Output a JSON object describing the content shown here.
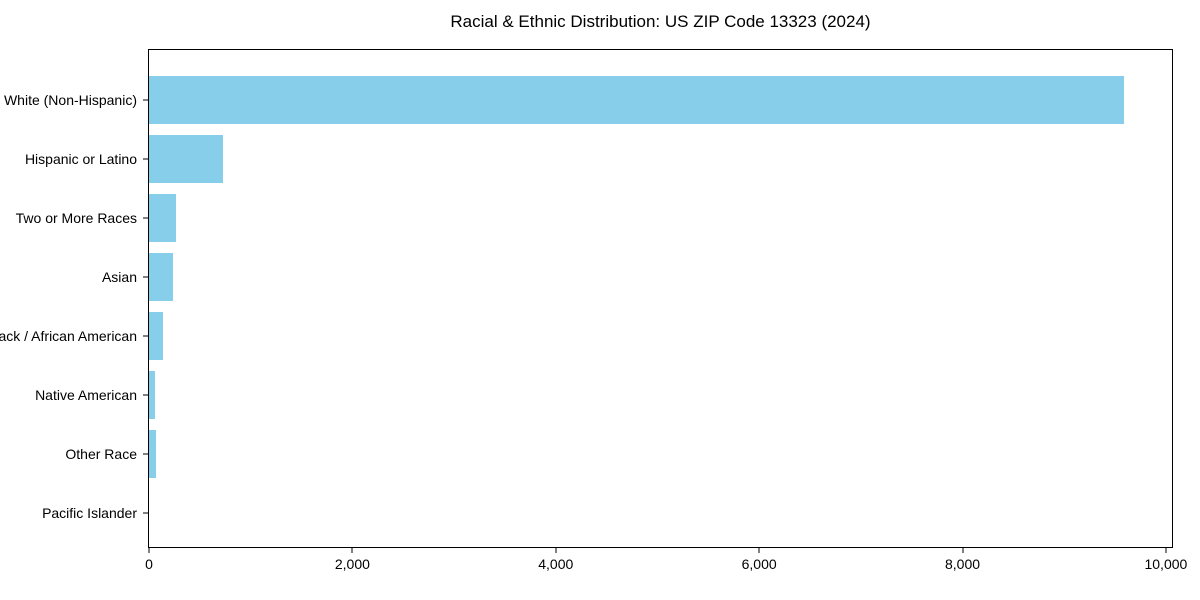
{
  "chart_data": {
    "type": "bar",
    "orientation": "horizontal",
    "title": "Racial & Ethnic Distribution: US ZIP Code 13323 (2024)",
    "categories": [
      "White (Non-Hispanic)",
      "Hispanic or Latino",
      "Two or More Races",
      "Asian",
      "Black / African American",
      "Native American",
      "Other Race",
      "Pacific Islander"
    ],
    "values": [
      9590,
      730,
      265,
      240,
      140,
      60,
      70,
      0
    ],
    "xlabel": "",
    "ylabel": "",
    "xlim": [
      0,
      10060
    ],
    "xticks": [
      0,
      2000,
      4000,
      6000,
      8000,
      10000
    ],
    "xtick_labels": [
      "0",
      "2,000",
      "4,000",
      "6,000",
      "8,000",
      "10,000"
    ],
    "bar_color": "#87CEEB",
    "axis_color": "#000000",
    "grid": false,
    "legend": null
  }
}
